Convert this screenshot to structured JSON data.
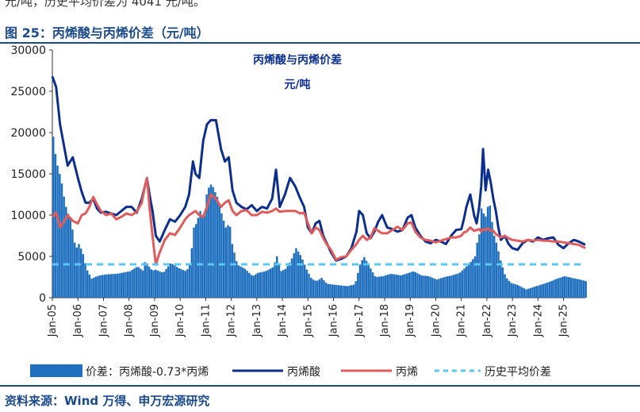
{
  "page": {
    "top_text": "元/吨，历史平均价差为 4041 元/吨。",
    "figure_title": "图 25：丙烯酸与丙烯价差（元/吨）",
    "source": "资料来源：Wind 万得、申万宏源研究"
  },
  "chart_data": {
    "type": "bar+line",
    "title": "丙烯酸与丙烯价差",
    "subtitle": "元/吨",
    "ylim": [
      0,
      30000
    ],
    "yticks": [
      0,
      5000,
      10000,
      15000,
      20000,
      25000,
      30000
    ],
    "xlim": [
      2005.0,
      2025.85
    ],
    "xticks": [
      "Jan-05",
      "Jan-06",
      "Jan-07",
      "Jan-08",
      "Jan-09",
      "Jan-10",
      "Jan-11",
      "Jan-12",
      "Jan-13",
      "Jan-14",
      "Jan-15",
      "Jan-16",
      "Jan-17",
      "Jan-18",
      "Jan-19",
      "Jan-20",
      "Jan-21",
      "Jan-22",
      "Jan-23",
      "Jan-24",
      "Jan-25"
    ],
    "average_spread": 4041,
    "colors": {
      "spread": "#1f6fbf",
      "acrylic_acid": "#0c2f8e",
      "propylene": "#e05c5c",
      "average": "#58c8f0"
    },
    "legend": {
      "spread": "价差：丙烯酸-0.73*丙烯",
      "acrylic_acid": "丙烯酸",
      "propylene": "丙烯",
      "average": "历史平均价差"
    },
    "series": [
      {
        "name": "丙烯酸",
        "key": "acrylic_acid",
        "x": [
          2005.0,
          2005.15,
          2005.3,
          2005.45,
          2005.6,
          2005.8,
          2006.0,
          2006.15,
          2006.3,
          2006.45,
          2006.6,
          2006.75,
          2006.9,
          2007.1,
          2007.3,
          2007.5,
          2007.7,
          2007.9,
          2008.1,
          2008.3,
          2008.5,
          2008.62,
          2008.7,
          2008.8,
          2008.92,
          2009.05,
          2009.2,
          2009.4,
          2009.6,
          2009.8,
          2010.0,
          2010.2,
          2010.35,
          2010.5,
          2010.6,
          2010.75,
          2010.9,
          2011.05,
          2011.2,
          2011.4,
          2011.6,
          2011.75,
          2011.9,
          2012.05,
          2012.2,
          2012.4,
          2012.6,
          2012.8,
          2013.0,
          2013.2,
          2013.4,
          2013.6,
          2013.75,
          2013.9,
          2014.1,
          2014.3,
          2014.5,
          2014.7,
          2014.85,
          2015.0,
          2015.15,
          2015.3,
          2015.45,
          2015.6,
          2015.75,
          2015.9,
          2016.1,
          2016.3,
          2016.5,
          2016.7,
          2016.9,
          2017.0,
          2017.15,
          2017.3,
          2017.45,
          2017.6,
          2017.75,
          2017.9,
          2018.1,
          2018.3,
          2018.5,
          2018.7,
          2018.9,
          2019.05,
          2019.2,
          2019.4,
          2019.6,
          2019.8,
          2020.0,
          2020.2,
          2020.4,
          2020.6,
          2020.8,
          2021.0,
          2021.1,
          2021.2,
          2021.35,
          2021.5,
          2021.6,
          2021.7,
          2021.78,
          2021.85,
          2021.95,
          2022.05,
          2022.15,
          2022.25,
          2022.35,
          2022.45,
          2022.55,
          2022.7,
          2022.85,
          2023.0,
          2023.2,
          2023.4,
          2023.6,
          2023.8,
          2024.0,
          2024.2,
          2024.4,
          2024.6,
          2024.8,
          2025.0,
          2025.2,
          2025.4,
          2025.6,
          2025.85
        ],
        "values": [
          26800,
          25500,
          21000,
          18500,
          16000,
          17000,
          14500,
          12800,
          11500,
          11500,
          12000,
          10800,
          10300,
          10400,
          10200,
          10000,
          10500,
          11000,
          11000,
          10300,
          12000,
          13500,
          14500,
          12500,
          10500,
          7500,
          6800,
          8200,
          9500,
          9200,
          10000,
          11000,
          12500,
          16500,
          15000,
          14500,
          19000,
          21000,
          21500,
          21500,
          18000,
          16500,
          17000,
          13000,
          11500,
          11000,
          10700,
          11200,
          10500,
          11000,
          10800,
          12000,
          15500,
          11000,
          12500,
          14500,
          13500,
          12000,
          11000,
          8500,
          7800,
          9000,
          9300,
          7500,
          6500,
          5500,
          4500,
          4700,
          5000,
          6000,
          8000,
          10500,
          10000,
          7800,
          7200,
          8000,
          9200,
          10000,
          8500,
          8300,
          8000,
          8200,
          9700,
          10000,
          8500,
          7500,
          6800,
          6600,
          7000,
          6800,
          6500,
          7500,
          8200,
          8300,
          9500,
          11000,
          12500,
          10000,
          9000,
          11000,
          13500,
          18000,
          13000,
          15500,
          14000,
          12000,
          10500,
          8500,
          7000,
          7500,
          6500,
          6000,
          5800,
          6600,
          7000,
          6800,
          7300,
          7000,
          7200,
          7300,
          6400,
          6000,
          6600,
          7000,
          6800,
          6400
        ]
      },
      {
        "name": "丙烯",
        "key": "propylene",
        "x": [
          2005.0,
          2005.15,
          2005.3,
          2005.45,
          2005.6,
          2005.8,
          2006.0,
          2006.15,
          2006.3,
          2006.45,
          2006.6,
          2006.75,
          2006.9,
          2007.1,
          2007.3,
          2007.5,
          2007.7,
          2007.9,
          2008.1,
          2008.3,
          2008.5,
          2008.62,
          2008.7,
          2008.8,
          2008.92,
          2009.05,
          2009.2,
          2009.4,
          2009.6,
          2009.8,
          2010.0,
          2010.2,
          2010.35,
          2010.5,
          2010.6,
          2010.75,
          2010.9,
          2011.05,
          2011.2,
          2011.4,
          2011.6,
          2011.75,
          2011.9,
          2012.05,
          2012.2,
          2012.4,
          2012.6,
          2012.8,
          2013.0,
          2013.2,
          2013.4,
          2013.6,
          2013.75,
          2013.9,
          2014.1,
          2014.3,
          2014.5,
          2014.7,
          2014.85,
          2015.0,
          2015.15,
          2015.3,
          2015.45,
          2015.6,
          2015.75,
          2015.9,
          2016.1,
          2016.3,
          2016.5,
          2016.7,
          2016.9,
          2017.0,
          2017.15,
          2017.3,
          2017.45,
          2017.6,
          2017.75,
          2017.9,
          2018.1,
          2018.3,
          2018.5,
          2018.7,
          2018.9,
          2019.05,
          2019.2,
          2019.4,
          2019.6,
          2019.8,
          2020.0,
          2020.2,
          2020.4,
          2020.6,
          2020.8,
          2021.0,
          2021.1,
          2021.2,
          2021.35,
          2021.5,
          2021.6,
          2021.7,
          2021.78,
          2021.85,
          2021.95,
          2022.05,
          2022.15,
          2022.25,
          2022.35,
          2022.45,
          2022.55,
          2022.7,
          2022.85,
          2023.0,
          2023.2,
          2023.4,
          2023.6,
          2023.8,
          2024.0,
          2024.2,
          2024.4,
          2024.6,
          2024.8,
          2025.0,
          2025.2,
          2025.4,
          2025.6,
          2025.85
        ],
        "values": [
          9800,
          10300,
          8500,
          9200,
          10000,
          9300,
          9000,
          10000,
          10200,
          11000,
          12200,
          11300,
          10500,
          10000,
          10200,
          9500,
          9800,
          10200,
          10000,
          10400,
          11500,
          13500,
          14500,
          11000,
          7500,
          4000,
          5500,
          7000,
          7800,
          7600,
          8500,
          9500,
          10000,
          10300,
          10500,
          10000,
          9800,
          11000,
          12500,
          12000,
          11000,
          11500,
          11800,
          10500,
          10000,
          10500,
          10600,
          10000,
          10000,
          10400,
          10300,
          10500,
          10800,
          10400,
          10500,
          10500,
          10500,
          10200,
          10300,
          9000,
          7800,
          8500,
          8200,
          7200,
          6400,
          5800,
          4600,
          4900,
          5000,
          5800,
          6500,
          7000,
          7500,
          7000,
          7300,
          8400,
          8100,
          7800,
          7800,
          8200,
          8600,
          8200,
          9000,
          9100,
          8000,
          7300,
          7000,
          6900,
          6700,
          6900,
          7100,
          7300,
          7300,
          7500,
          7900,
          8000,
          8500,
          8100,
          8200,
          8300,
          8000,
          8300,
          8200,
          8400,
          8100,
          8100,
          7700,
          7500,
          7300,
          7500,
          7200,
          7000,
          6900,
          6800,
          7000,
          6900,
          7000,
          6900,
          6900,
          6800,
          6800,
          6700,
          6600,
          6500,
          6400,
          6000
        ]
      },
      {
        "name": "历史平均价差",
        "key": "average",
        "x": [
          2005.0,
          2025.85
        ],
        "values": [
          4041,
          4041
        ]
      },
      {
        "name": "价差：丙烯酸-0.73*丙烯",
        "key": "spread",
        "x": [
          2005.0,
          2005.1,
          2005.2,
          2005.3,
          2005.4,
          2005.5,
          2005.6,
          2005.7,
          2005.8,
          2005.9,
          2006.0,
          2006.15,
          2006.3,
          2006.5,
          2006.7,
          2007.0,
          2007.5,
          2008.0,
          2008.3,
          2008.5,
          2008.6,
          2008.7,
          2008.8,
          2008.9,
          2009.0,
          2009.3,
          2009.6,
          2009.9,
          2010.2,
          2010.35,
          2010.5,
          2010.6,
          2010.75,
          2010.9,
          2011.0,
          2011.1,
          2011.2,
          2011.3,
          2011.45,
          2011.6,
          2011.75,
          2011.9,
          2012.0,
          2012.2,
          2012.5,
          2012.8,
          2013.0,
          2013.3,
          2013.6,
          2013.75,
          2013.9,
          2014.1,
          2014.3,
          2014.5,
          2014.7,
          2014.9,
          2015.1,
          2015.3,
          2015.5,
          2015.7,
          2015.9,
          2016.2,
          2016.5,
          2016.8,
          2017.0,
          2017.15,
          2017.3,
          2017.6,
          2017.9,
          2018.2,
          2018.6,
          2018.9,
          2019.1,
          2019.4,
          2019.7,
          2020.0,
          2020.3,
          2020.6,
          2020.9,
          2021.1,
          2021.3,
          2021.5,
          2021.6,
          2021.7,
          2021.78,
          2021.85,
          2021.95,
          2022.05,
          2022.15,
          2022.25,
          2022.35,
          2022.5,
          2022.7,
          2022.9,
          2023.2,
          2023.5,
          2023.8,
          2024.1,
          2024.4,
          2024.7,
          2025.0,
          2025.3,
          2025.6,
          2025.85
        ],
        "values": [
          19500,
          17000,
          15500,
          14500,
          12500,
          11000,
          10000,
          9500,
          7000,
          6000,
          6500,
          5500,
          3500,
          2300,
          2600,
          2800,
          2900,
          3200,
          3800,
          3300,
          4500,
          4000,
          3500,
          3300,
          3400,
          3000,
          4200,
          3600,
          3200,
          4000,
          8500,
          9000,
          10500,
          9500,
          12500,
          13500,
          13800,
          13000,
          12000,
          10000,
          8500,
          9000,
          6500,
          4000,
          3500,
          2600,
          3000,
          3200,
          3700,
          5000,
          3200,
          3500,
          4500,
          6000,
          5000,
          3500,
          2300,
          2000,
          2400,
          1700,
          1600,
          1500,
          1400,
          1600,
          4000,
          5000,
          4200,
          2500,
          2600,
          2900,
          2700,
          3000,
          3200,
          2700,
          2600,
          2200,
          2500,
          2700,
          3000,
          3600,
          4200,
          5000,
          7000,
          8000,
          12500,
          9500,
          10000,
          12000,
          9500,
          7500,
          6500,
          4500,
          2500,
          1800,
          1500,
          1000,
          1300,
          1600,
          1900,
          2300,
          2600,
          2400,
          2200,
          2000
        ]
      }
    ]
  }
}
